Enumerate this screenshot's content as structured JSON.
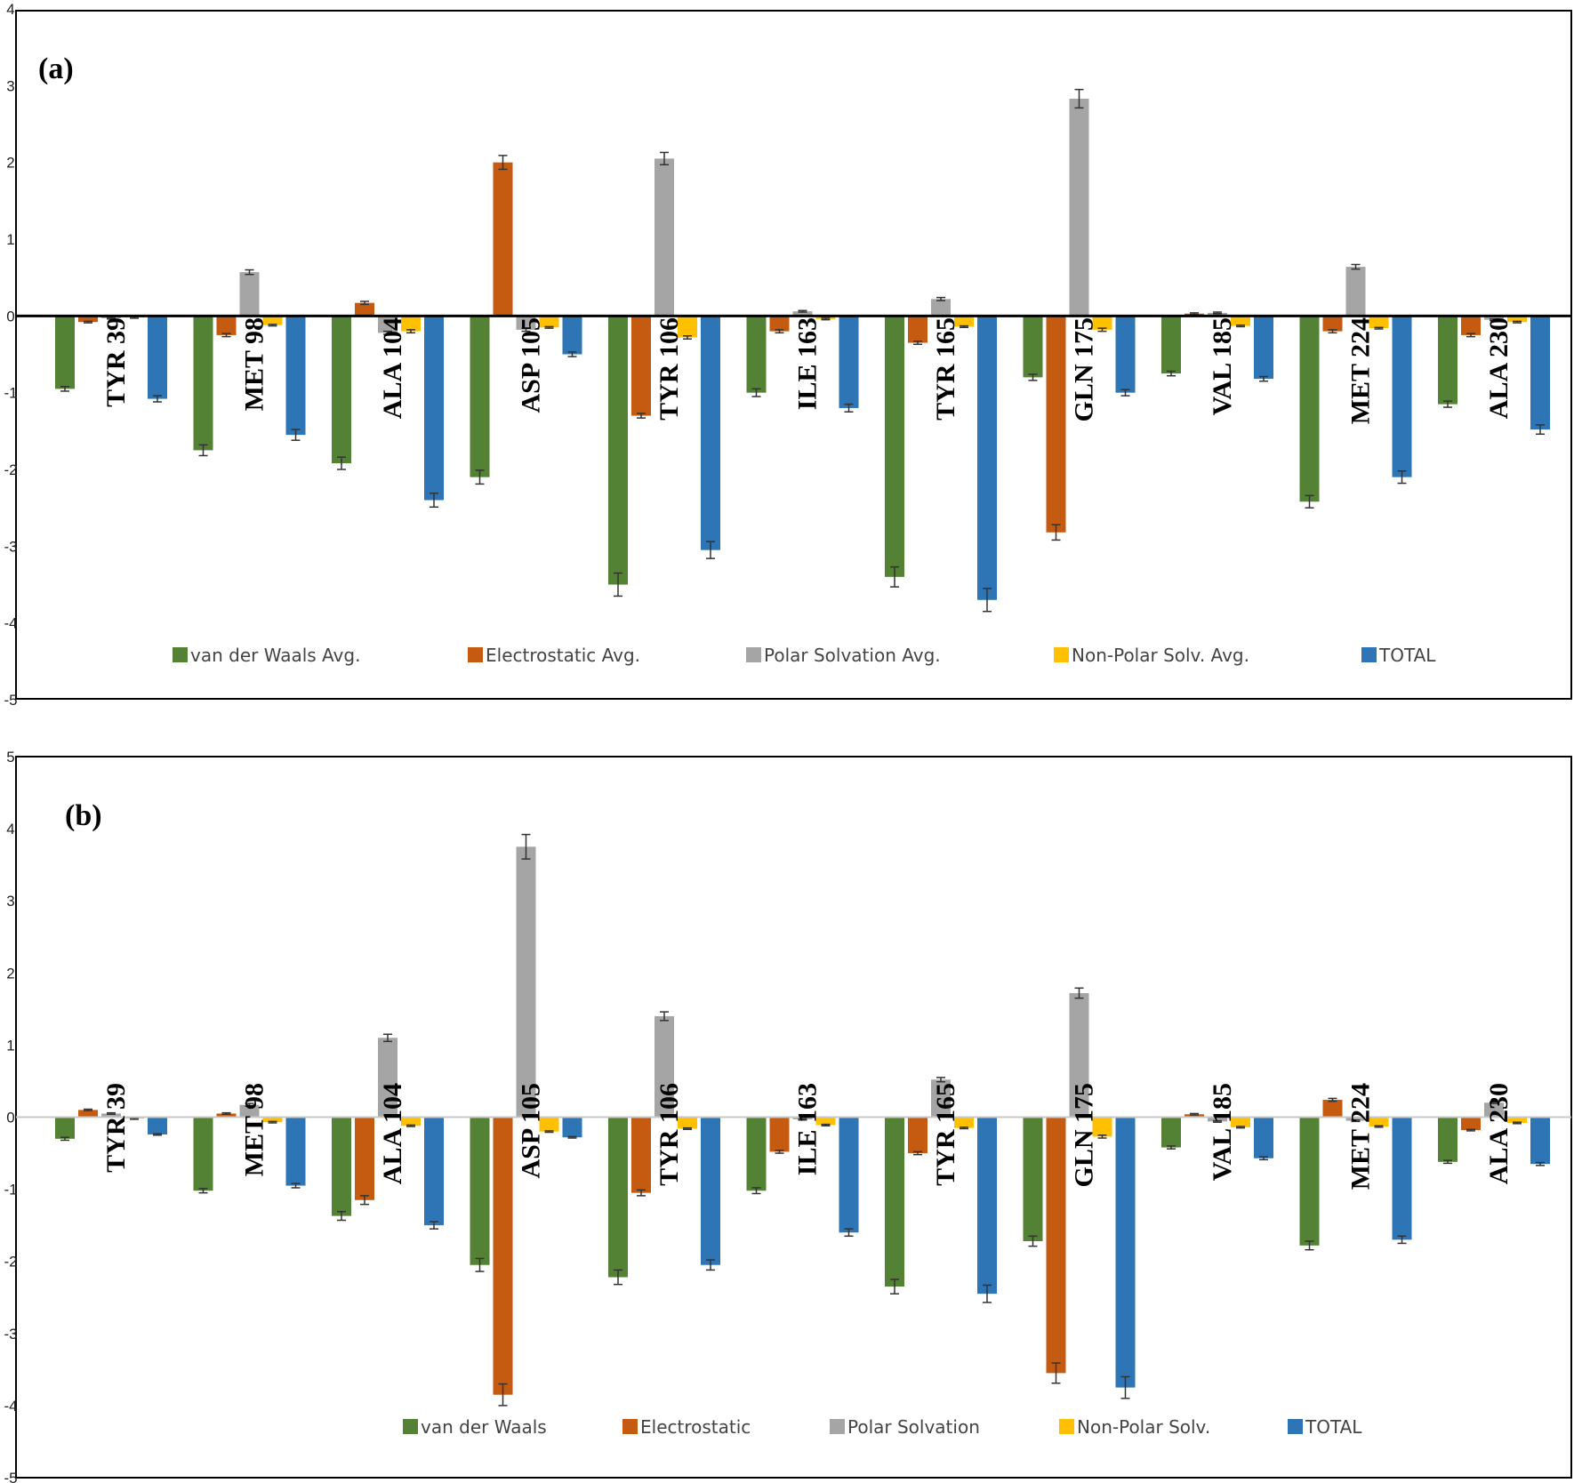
{
  "colors": {
    "van der Waals": "#548235",
    "Electrostatic": "#C55A11",
    "Polar Solvation": "#A5A5A5",
    "Non-Polar Solv.": "#FFC000",
    "TOTAL": "#2E75B6"
  },
  "chart_data": [
    {
      "type": "bar",
      "title": "(a)",
      "ylim": [
        -5,
        4
      ],
      "yticks": [
        "4",
        "3",
        "2",
        "1",
        "0",
        "-1",
        "-2",
        "-3",
        "-4",
        "-5"
      ],
      "categories": [
        "TYR 39",
        "MET 98",
        "ALA 104",
        "ASP 105",
        "TYR 106",
        "ILE 163",
        "TYR 165",
        "GLN 175",
        "VAL 185",
        "MET 224",
        "ALA 230"
      ],
      "legend": [
        "van der Waals Avg.",
        "Electrostatic Avg.",
        "Polar Solvation Avg.",
        "Non-Polar Solv. Avg.",
        "TOTAL"
      ],
      "series": [
        {
          "name": "van der Waals Avg.",
          "color_key": "van der Waals",
          "values": [
            -0.95,
            -1.75,
            -1.92,
            -2.1,
            -3.5,
            -1.0,
            -3.4,
            -0.8,
            -0.75,
            -2.42,
            -1.15
          ],
          "errors": [
            0.03,
            0.07,
            0.08,
            0.09,
            0.15,
            0.05,
            0.13,
            0.04,
            0.03,
            0.08,
            0.04
          ]
        },
        {
          "name": "Electrostatic Avg.",
          "color_key": "Electrostatic",
          "values": [
            -0.08,
            -0.25,
            0.17,
            2.0,
            -1.3,
            -0.2,
            -0.35,
            -2.82,
            0.03,
            -0.2,
            -0.25
          ],
          "errors": [
            0.01,
            0.02,
            0.02,
            0.09,
            0.03,
            0.02,
            0.02,
            0.1,
            0.01,
            0.02,
            0.02
          ]
        },
        {
          "name": "Polar Solvation Avg.",
          "color_key": "Polar Solvation",
          "values": [
            -0.03,
            0.57,
            -0.22,
            -0.18,
            2.05,
            0.06,
            0.22,
            2.83,
            0.04,
            0.64,
            -0.05
          ],
          "errors": [
            0.01,
            0.03,
            0.02,
            0.02,
            0.08,
            0.01,
            0.02,
            0.12,
            0.01,
            0.03,
            0.01
          ]
        },
        {
          "name": "Non-Polar Solv. Avg.",
          "color_key": "Non-Polar Solv.",
          "values": [
            -0.02,
            -0.12,
            -0.2,
            -0.15,
            -0.28,
            -0.04,
            -0.14,
            -0.18,
            -0.13,
            -0.16,
            -0.08
          ],
          "errors": [
            0.01,
            0.01,
            0.02,
            0.01,
            0.02,
            0.01,
            0.01,
            0.02,
            0.01,
            0.01,
            0.01
          ]
        },
        {
          "name": "TOTAL",
          "color_key": "TOTAL",
          "values": [
            -1.08,
            -1.55,
            -2.4,
            -0.5,
            -3.05,
            -1.2,
            -3.7,
            -1.0,
            -0.82,
            -2.1,
            -1.48
          ],
          "errors": [
            0.04,
            0.07,
            0.09,
            0.03,
            0.11,
            0.05,
            0.15,
            0.04,
            0.03,
            0.08,
            0.06
          ]
        }
      ]
    },
    {
      "type": "bar",
      "title": "(b)",
      "ylim": [
        -5,
        5
      ],
      "yticks": [
        "5",
        "4",
        "3",
        "2",
        "1",
        "0",
        "-1",
        "-2",
        "-3",
        "-4",
        "-5"
      ],
      "categories": [
        "TYR 39",
        "MET 98",
        "ALA 104",
        "ASP 105",
        "TYR 106",
        "ILE 163",
        "TYR 165",
        "GLN 175",
        "VAL 185",
        "MET 224",
        "ALA 230"
      ],
      "legend": [
        "van der Waals",
        "Electrostatic",
        "Polar Solvation",
        "Non-Polar Solv.",
        "TOTAL"
      ],
      "series": [
        {
          "name": "van der Waals",
          "color_key": "van der Waals",
          "values": [
            -0.3,
            -1.02,
            -1.37,
            -2.05,
            -2.22,
            -1.02,
            -2.35,
            -1.72,
            -0.42,
            -1.78,
            -0.62
          ],
          "errors": [
            0.02,
            0.03,
            0.06,
            0.09,
            0.1,
            0.04,
            0.1,
            0.07,
            0.02,
            0.06,
            0.02
          ]
        },
        {
          "name": "Electrostatic",
          "color_key": "Electrostatic",
          "values": [
            0.1,
            0.05,
            -1.15,
            -3.85,
            -1.05,
            -0.48,
            -0.5,
            -3.55,
            0.04,
            0.24,
            -0.18
          ],
          "errors": [
            0.01,
            0.01,
            0.06,
            0.15,
            0.04,
            0.02,
            0.02,
            0.14,
            0.01,
            0.02,
            0.01
          ]
        },
        {
          "name": "Polar Solvation",
          "color_key": "Polar Solvation",
          "values": [
            0.05,
            0.17,
            1.1,
            3.75,
            1.4,
            -0.03,
            0.52,
            1.72,
            -0.06,
            -0.05,
            0.2
          ],
          "errors": [
            0.01,
            0.02,
            0.05,
            0.17,
            0.06,
            0.01,
            0.03,
            0.07,
            0.01,
            0.01,
            0.01
          ]
        },
        {
          "name": "Non-Polar Solv.",
          "color_key": "Non-Polar Solv.",
          "values": [
            -0.02,
            -0.07,
            -0.12,
            -0.2,
            -0.16,
            -0.11,
            -0.15,
            -0.27,
            -0.14,
            -0.13,
            -0.08
          ],
          "errors": [
            0.01,
            0.01,
            0.01,
            0.01,
            0.01,
            0.01,
            0.01,
            0.02,
            0.01,
            0.01,
            0.01
          ]
        },
        {
          "name": "TOTAL",
          "color_key": "TOTAL",
          "values": [
            -0.24,
            -0.95,
            -1.5,
            -0.28,
            -2.05,
            -1.6,
            -2.45,
            -3.75,
            -0.57,
            -1.7,
            -0.65
          ],
          "errors": [
            0.01,
            0.03,
            0.05,
            0.01,
            0.07,
            0.05,
            0.12,
            0.15,
            0.02,
            0.05,
            0.02
          ]
        }
      ]
    }
  ]
}
